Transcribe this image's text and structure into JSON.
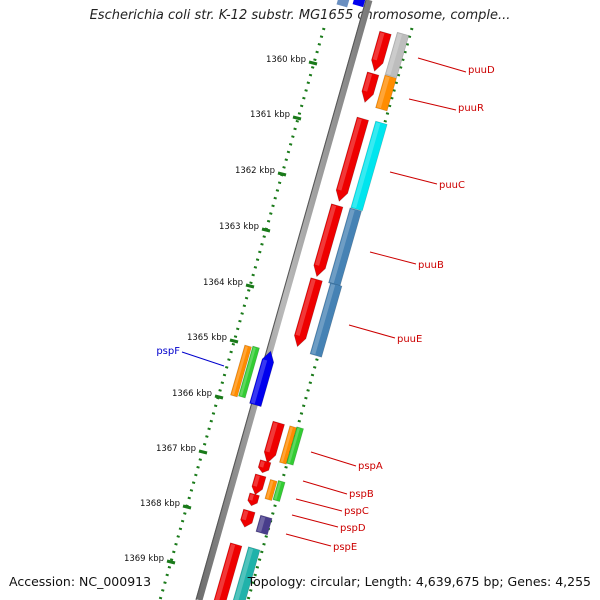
{
  "map": {
    "title": "Escherichia coli str. K-12 substr. MG1655 chromosome, comple...",
    "accession": "Accession: NC_000913",
    "summary": "Topology: circular; Length: 4,639,675 bp; Genes: 4,255"
  },
  "colors": {
    "tick": "#1a7a1a",
    "backbone": "#8a8a8a",
    "forward_label": "#cc0000",
    "reverse_label": "#0000cc"
  },
  "ticks": [
    {
      "label": "1360 kbp"
    },
    {
      "label": "1361 kbp"
    },
    {
      "label": "1362 kbp"
    },
    {
      "label": "1363 kbp"
    },
    {
      "label": "1364 kbp"
    },
    {
      "label": "1365 kbp"
    },
    {
      "label": "1366 kbp"
    },
    {
      "label": "1367 kbp"
    },
    {
      "label": "1368 kbp"
    },
    {
      "label": "1369 kbp"
    }
  ],
  "genes": [
    {
      "name": "puuD",
      "strand": "+"
    },
    {
      "name": "puuR",
      "strand": "+"
    },
    {
      "name": "puuC",
      "strand": "+"
    },
    {
      "name": "puuB",
      "strand": "+"
    },
    {
      "name": "puuE",
      "strand": "+"
    },
    {
      "name": "pspF",
      "strand": "-"
    },
    {
      "name": "pspA",
      "strand": "+"
    },
    {
      "name": "pspB",
      "strand": "+"
    },
    {
      "name": "pspC",
      "strand": "+"
    },
    {
      "name": "pspD",
      "strand": "+"
    },
    {
      "name": "pspE",
      "strand": "+"
    }
  ]
}
